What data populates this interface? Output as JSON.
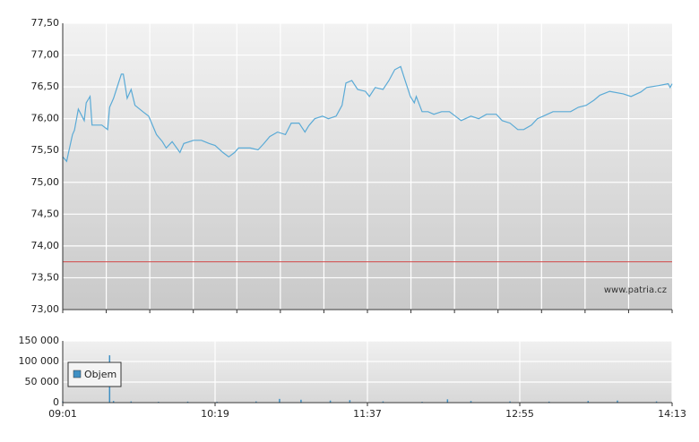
{
  "chart_data": [
    {
      "type": "line",
      "color": "#5aaad6",
      "x": [
        "09:01",
        "09:03",
        "09:04",
        "09:06",
        "09:07",
        "09:09",
        "09:12",
        "09:13",
        "09:15",
        "09:16",
        "09:21",
        "09:24",
        "09:25",
        "09:27",
        "09:31",
        "09:32",
        "09:34",
        "09:36",
        "09:38",
        "09:42",
        "09:45",
        "09:49",
        "09:52",
        "09:54",
        "09:57",
        "10:01",
        "10:03",
        "10:08",
        "10:12",
        "10:16",
        "10:19",
        "10:23",
        "10:26",
        "10:29",
        "10:31",
        "10:37",
        "10:41",
        "10:44",
        "10:47",
        "10:51",
        "10:55",
        "10:58",
        "11:02",
        "11:05",
        "11:07",
        "11:10",
        "11:14",
        "11:17",
        "11:21",
        "11:24",
        "11:26",
        "11:29",
        "11:32",
        "11:36",
        "11:38",
        "11:41",
        "11:45",
        "11:48",
        "11:51",
        "11:54",
        "11:56",
        "11:59",
        "12:01",
        "12:02",
        "12:05",
        "12:08",
        "12:11",
        "12:15",
        "12:19",
        "12:22",
        "12:25",
        "12:30",
        "12:34",
        "12:38",
        "12:43",
        "12:46",
        "12:50",
        "12:54",
        "12:57",
        "13:01",
        "13:04",
        "13:07",
        "13:12",
        "13:21",
        "13:25",
        "13:29",
        "13:33",
        "13:36",
        "13:41",
        "13:48",
        "13:52",
        "13:57",
        "14:00",
        "14:06",
        "14:11",
        "14:12",
        "14:13"
      ],
      "values": [
        75.4,
        75.33,
        75.47,
        75.75,
        75.82,
        76.15,
        75.97,
        76.25,
        76.35,
        75.9,
        75.9,
        75.83,
        76.18,
        76.32,
        76.7,
        76.7,
        76.32,
        76.46,
        76.21,
        76.11,
        76.04,
        75.75,
        75.64,
        75.54,
        75.64,
        75.47,
        75.61,
        75.66,
        75.66,
        75.61,
        75.58,
        75.47,
        75.4,
        75.47,
        75.54,
        75.54,
        75.51,
        75.61,
        75.72,
        75.79,
        75.75,
        75.93,
        75.93,
        75.79,
        75.89,
        76.0,
        76.04,
        76.0,
        76.04,
        76.21,
        76.56,
        76.6,
        76.46,
        76.43,
        76.35,
        76.49,
        76.46,
        76.6,
        76.77,
        76.82,
        76.63,
        76.35,
        76.25,
        76.35,
        76.11,
        76.11,
        76.07,
        76.11,
        76.11,
        76.04,
        75.97,
        76.04,
        76.0,
        76.07,
        76.07,
        75.97,
        75.93,
        75.83,
        75.83,
        75.9,
        76.0,
        76.04,
        76.11,
        76.11,
        76.18,
        76.21,
        76.29,
        76.37,
        76.43,
        76.39,
        76.35,
        76.42,
        76.49,
        76.52,
        76.55,
        76.49,
        76.55
      ],
      "xlim": [
        "09:01",
        "14:13"
      ],
      "ylim": [
        73.0,
        77.5
      ],
      "yticks": [
        {
          "value": 73.0,
          "label": "73,00"
        },
        {
          "value": 73.5,
          "label": "73,50"
        },
        {
          "value": 74.0,
          "label": "74,00"
        },
        {
          "value": 74.5,
          "label": "74,50"
        },
        {
          "value": 75.0,
          "label": "75,00"
        },
        {
          "value": 75.5,
          "label": "75,50"
        },
        {
          "value": 76.0,
          "label": "76,00"
        },
        {
          "value": 76.5,
          "label": "76,50"
        },
        {
          "value": 77.0,
          "label": "77,00"
        },
        {
          "value": 77.5,
          "label": "77,50"
        }
      ],
      "reference_line": 73.75,
      "reference_color": "#d24a4a",
      "watermark": "www.patria.cz",
      "grid": true
    },
    {
      "type": "bar",
      "x": [
        "09:01",
        "09:25",
        "09:27",
        "09:36",
        "09:50",
        "10:05",
        "10:20",
        "10:40",
        "10:52",
        "11:03",
        "11:18",
        "11:28",
        "11:45",
        "12:05",
        "12:18",
        "12:30",
        "12:50",
        "13:10",
        "13:30",
        "13:45",
        "14:05"
      ],
      "series": [
        {
          "name": "Objem",
          "color": "#3f90c4",
          "values": [
            3000,
            115000,
            4000,
            3000,
            2000,
            2500,
            2000,
            3000,
            9000,
            7000,
            5000,
            6000,
            3000,
            2000,
            8000,
            4000,
            3000,
            2500,
            4000,
            5000,
            3000
          ]
        }
      ],
      "xlim": [
        "09:01",
        "14:13"
      ],
      "xticks": [
        "09:01",
        "10:19",
        "11:37",
        "12:55",
        "14:13"
      ],
      "ylim": [
        0,
        150000
      ],
      "yticks": [
        0,
        {
          "value": 50000,
          "label": "50 000"
        },
        {
          "value": 100000,
          "label": "100 000"
        },
        {
          "value": 150000,
          "label": "150 000"
        }
      ],
      "grid": true
    }
  ]
}
